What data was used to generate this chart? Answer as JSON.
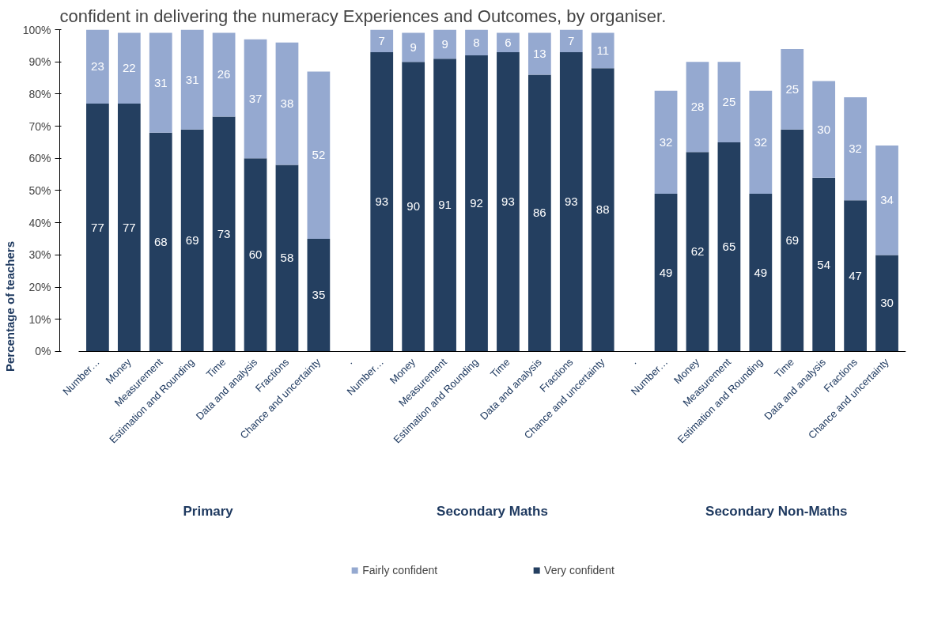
{
  "chart_data": {
    "type": "bar",
    "title": "confident in delivering the numeracy Experiences and Outcomes, by organiser.",
    "ylabel": "Percentage of teachers",
    "categories": [
      "Number…",
      "Money",
      "Measurement",
      "Estimation and Rounding",
      "Time",
      "Data and analysis",
      "Fractions",
      "Chance and uncertainty",
      ".",
      "Number…",
      "Money",
      "Measurement",
      "Estimation and Rounding",
      "Time",
      "Data and analysis",
      "Fractions",
      "Chance and uncertainty",
      ".",
      "Number…",
      "Money",
      "Measurement",
      "Estimation and Rounding",
      "Time",
      "Data and analysis",
      "Fractions",
      "Chance and uncertainty"
    ],
    "stacked": true,
    "series": [
      {
        "name": "Very confident",
        "color": "#243f60",
        "values": [
          77,
          77,
          68,
          69,
          73,
          60,
          58,
          35,
          null,
          93,
          90,
          91,
          92,
          93,
          86,
          93,
          88,
          null,
          49,
          62,
          65,
          49,
          69,
          54,
          47,
          30
        ]
      },
      {
        "name": "Fairly confident",
        "color": "#95a9d0",
        "values": [
          23,
          22,
          31,
          31,
          26,
          37,
          38,
          52,
          null,
          7,
          9,
          9,
          8,
          6,
          13,
          7,
          11,
          null,
          32,
          28,
          25,
          32,
          25,
          30,
          32,
          34
        ]
      }
    ],
    "ylim": [
      0,
      100
    ],
    "yticks": [
      {
        "value": 0,
        "label": "0%"
      },
      {
        "value": 10,
        "label": "10%"
      },
      {
        "value": 20,
        "label": "20%"
      },
      {
        "value": 30,
        "label": "30%"
      },
      {
        "value": 40,
        "label": "40%"
      },
      {
        "value": 50,
        "label": "50%"
      },
      {
        "value": 60,
        "label": "60%"
      },
      {
        "value": 70,
        "label": "70%"
      },
      {
        "value": 80,
        "label": "80%"
      },
      {
        "value": 90,
        "label": "90%"
      },
      {
        "value": 100,
        "label": "100%"
      }
    ],
    "data_labels": true,
    "grid": false,
    "legend": "bottom",
    "annotations": [
      "Primary",
      "Secondary Maths",
      "Secondary Non-Maths"
    ]
  }
}
